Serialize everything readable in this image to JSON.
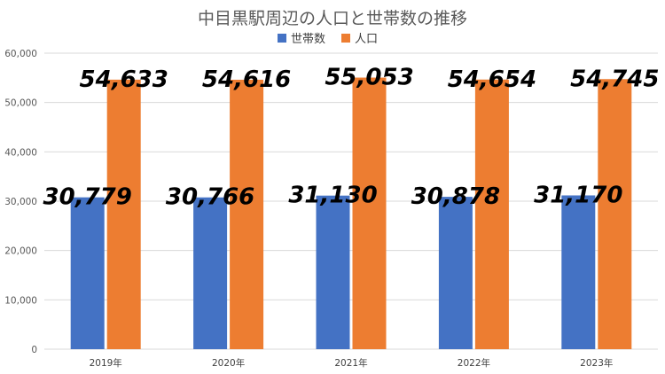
{
  "chart_data": {
    "type": "bar",
    "title": "中目黒駅周辺の人口と世帯数の推移",
    "categories": [
      "2019年",
      "2020年",
      "2021年",
      "2022年",
      "2023年"
    ],
    "series": [
      {
        "name": "世帯数",
        "values": [
          30779,
          30766,
          31130,
          30878,
          31170
        ],
        "color": "#4472c4"
      },
      {
        "name": "人口",
        "values": [
          54633,
          54616,
          55053,
          54654,
          54745
        ],
        "color": "#ed7d31"
      }
    ],
    "data_labels": [
      [
        "30,779",
        "30,766",
        "31,130",
        "30,878",
        "31,170"
      ],
      [
        "54,633",
        "54,616",
        "55,053",
        "54,654",
        "54,745"
      ]
    ],
    "yticks": [
      "0",
      "10,000",
      "20,000",
      "30,000",
      "40,000",
      "50,000",
      "60,000"
    ],
    "ylim": [
      0,
      60000
    ],
    "grid": true,
    "legend": "top-center"
  }
}
